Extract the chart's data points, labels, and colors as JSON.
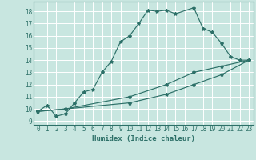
{
  "xlabel": "Humidex (Indice chaleur)",
  "bg_color": "#c8e6e0",
  "grid_color": "#ffffff",
  "line_color": "#2d7068",
  "xlim": [
    -0.5,
    23.5
  ],
  "ylim": [
    8.7,
    18.8
  ],
  "yticks": [
    9,
    10,
    11,
    12,
    13,
    14,
    15,
    16,
    17,
    18
  ],
  "xticks": [
    0,
    1,
    2,
    3,
    4,
    5,
    6,
    7,
    8,
    9,
    10,
    11,
    12,
    13,
    14,
    15,
    16,
    17,
    18,
    19,
    20,
    21,
    22,
    23
  ],
  "series": [
    {
      "x": [
        0,
        1,
        2,
        3,
        4,
        5,
        6,
        7,
        8,
        9,
        10,
        11,
        12,
        13,
        14,
        15,
        17,
        18,
        19,
        20,
        21,
        22,
        23
      ],
      "y": [
        9.8,
        10.3,
        9.4,
        9.6,
        10.5,
        11.4,
        11.6,
        13.0,
        13.9,
        15.5,
        16.0,
        17.0,
        18.1,
        18.0,
        18.1,
        17.8,
        18.3,
        16.6,
        16.3,
        15.4,
        14.3,
        14.0,
        14.0
      ]
    },
    {
      "x": [
        0,
        3,
        10,
        14,
        17,
        20,
        23
      ],
      "y": [
        9.8,
        10.0,
        11.0,
        12.0,
        13.0,
        13.5,
        14.0
      ]
    },
    {
      "x": [
        0,
        3,
        10,
        14,
        17,
        20,
        23
      ],
      "y": [
        9.8,
        10.0,
        10.5,
        11.2,
        12.0,
        12.8,
        14.0
      ]
    }
  ]
}
